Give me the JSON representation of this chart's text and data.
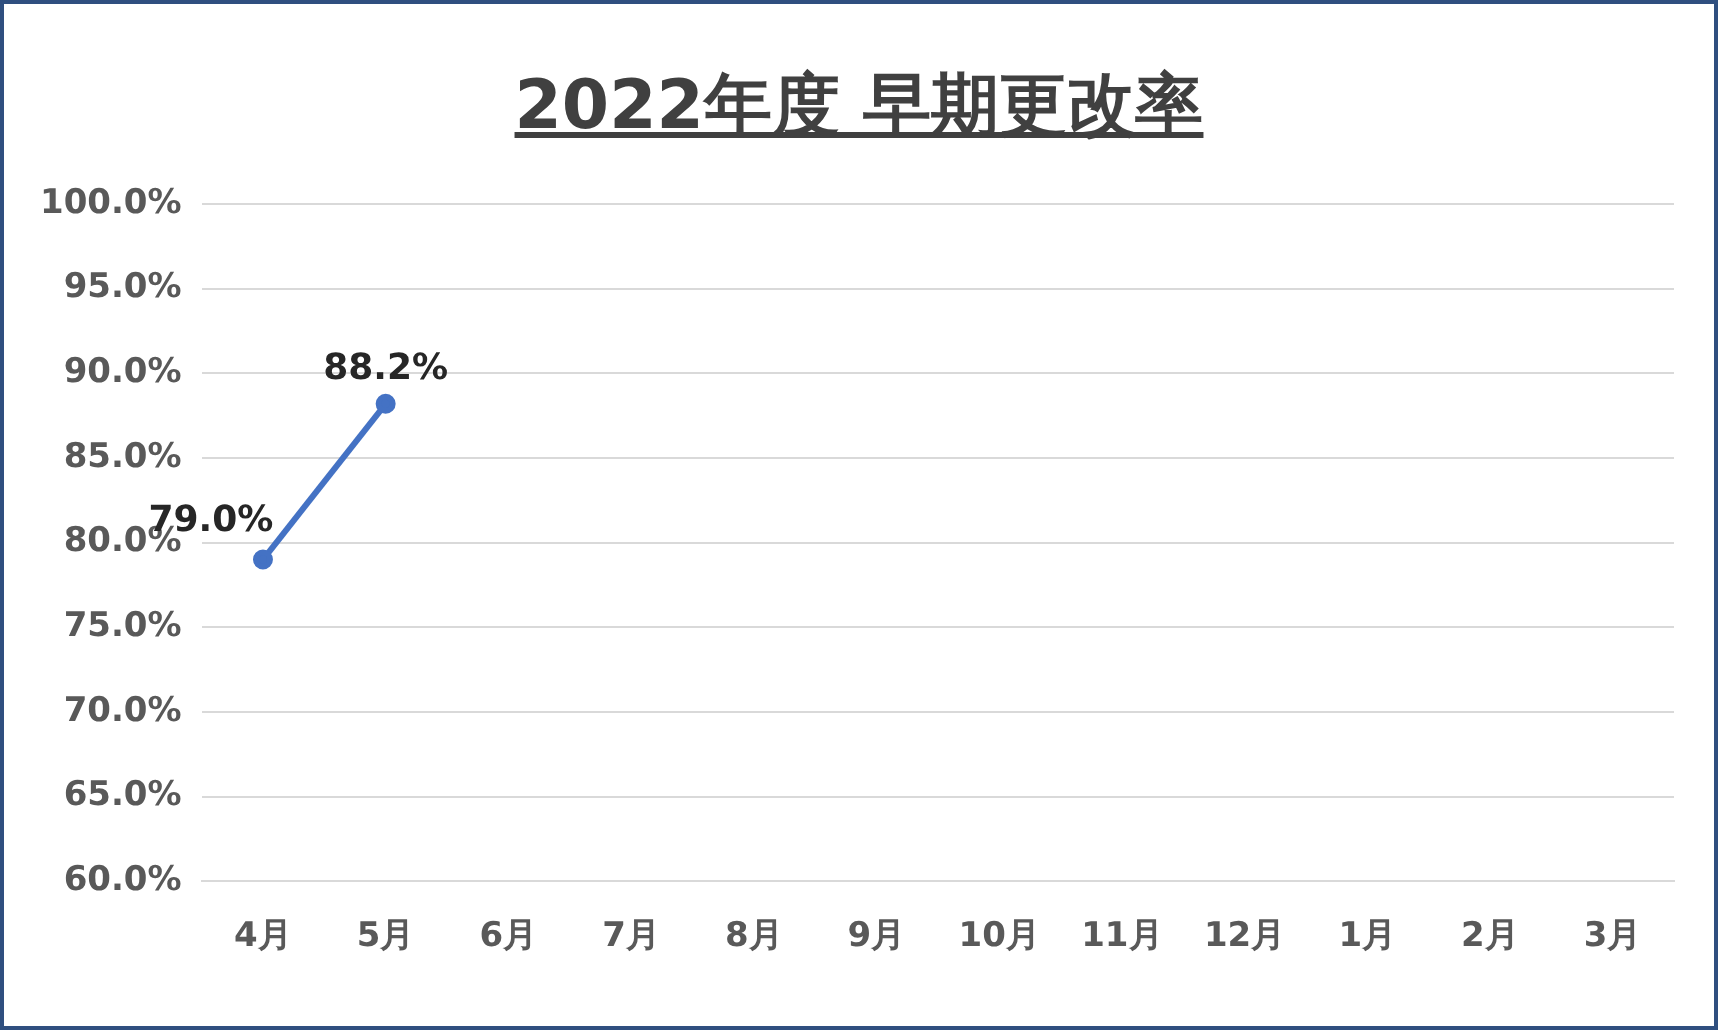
{
  "chart_data": {
    "type": "line",
    "title": "2022年度 早期更改率",
    "categories": [
      "4月",
      "5月",
      "6月",
      "7月",
      "8月",
      "9月",
      "10月",
      "11月",
      "12月",
      "1月",
      "2月",
      "3月"
    ],
    "series": [
      {
        "color": "#4472c4",
        "values": [
          79.0,
          88.2,
          null,
          null,
          null,
          null,
          null,
          null,
          null,
          null,
          null,
          null
        ],
        "value_labels": [
          "79.0%",
          "88.2%",
          null,
          null,
          null,
          null,
          null,
          null,
          null,
          null,
          null,
          null
        ]
      }
    ],
    "ylim": [
      60,
      100
    ],
    "yticks": [
      {
        "value": 60,
        "label": "60.0%"
      },
      {
        "value": 65,
        "label": "65.0%"
      },
      {
        "value": 70,
        "label": "70.0%"
      },
      {
        "value": 75,
        "label": "75.0%"
      },
      {
        "value": 80,
        "label": "80.0%"
      },
      {
        "value": 85,
        "label": "85.0%"
      },
      {
        "value": 90,
        "label": "90.0%"
      },
      {
        "value": 95,
        "label": "95.0%"
      },
      {
        "value": 100,
        "label": "100.0%"
      }
    ],
    "grid": "y",
    "legend": false,
    "marker": "circle",
    "line_style": "solid"
  }
}
